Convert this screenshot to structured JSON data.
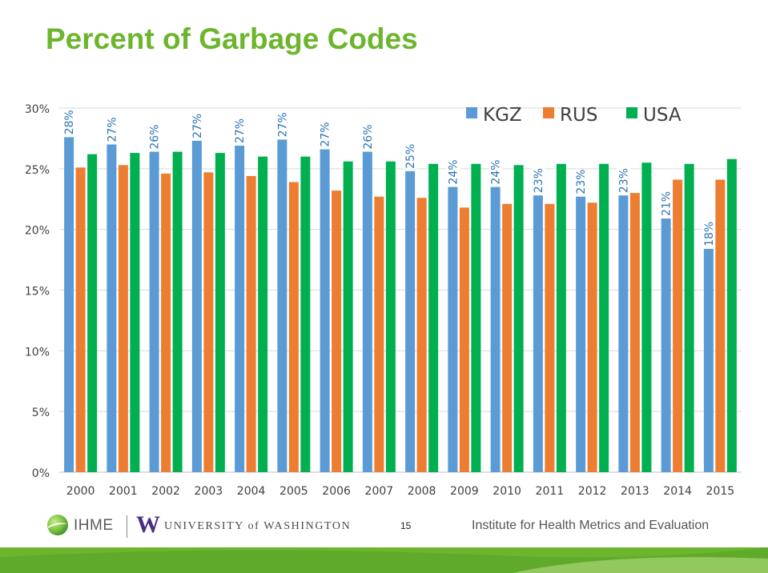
{
  "slide": {
    "title": "Percent of Garbage Codes",
    "page_number": "15",
    "footer": {
      "ihme_text": "IHME",
      "uw_text": "UNIVERSITY of WASHINGTON",
      "institute_text": "Institute for Health Metrics and Evaluation",
      "brand_green": "#6cb52d",
      "uw_purple": "#4b2e83"
    }
  },
  "chart_data": {
    "type": "bar",
    "categories": [
      "2000",
      "2001",
      "2002",
      "2003",
      "2004",
      "2005",
      "2006",
      "2007",
      "2008",
      "2009",
      "2010",
      "2011",
      "2012",
      "2013",
      "2014",
      "2015"
    ],
    "series": [
      {
        "name": "KGZ",
        "color": "#5b9bd5",
        "values": [
          27.6,
          27.0,
          26.4,
          27.3,
          26.9,
          27.4,
          26.6,
          26.4,
          24.8,
          23.5,
          23.5,
          22.8,
          22.7,
          22.8,
          20.9,
          18.4
        ],
        "data_labels": [
          "28%",
          "27%",
          "26%",
          "27%",
          "27%",
          "27%",
          "27%",
          "26%",
          "25%",
          "24%",
          "24%",
          "23%",
          "23%",
          "23%",
          "21%",
          "18%"
        ]
      },
      {
        "name": "RUS",
        "color": "#ed7d31",
        "values": [
          25.1,
          25.3,
          24.6,
          24.7,
          24.4,
          23.9,
          23.2,
          22.7,
          22.6,
          21.8,
          22.1,
          22.1,
          22.2,
          23.0,
          24.1,
          24.1
        ]
      },
      {
        "name": "USA",
        "color": "#00b050",
        "values": [
          26.2,
          26.3,
          26.4,
          26.3,
          26.0,
          26.0,
          25.6,
          25.6,
          25.4,
          25.4,
          25.3,
          25.4,
          25.4,
          25.5,
          25.4,
          25.8
        ]
      }
    ],
    "ylim": [
      0,
      30
    ],
    "yticks": [
      0,
      5,
      10,
      15,
      20,
      25,
      30
    ],
    "ytick_labels": [
      "0%",
      "5%",
      "10%",
      "15%",
      "20%",
      "25%",
      "30%"
    ],
    "grid": true,
    "legend_position": "top-right",
    "xlabel": "",
    "ylabel": ""
  }
}
